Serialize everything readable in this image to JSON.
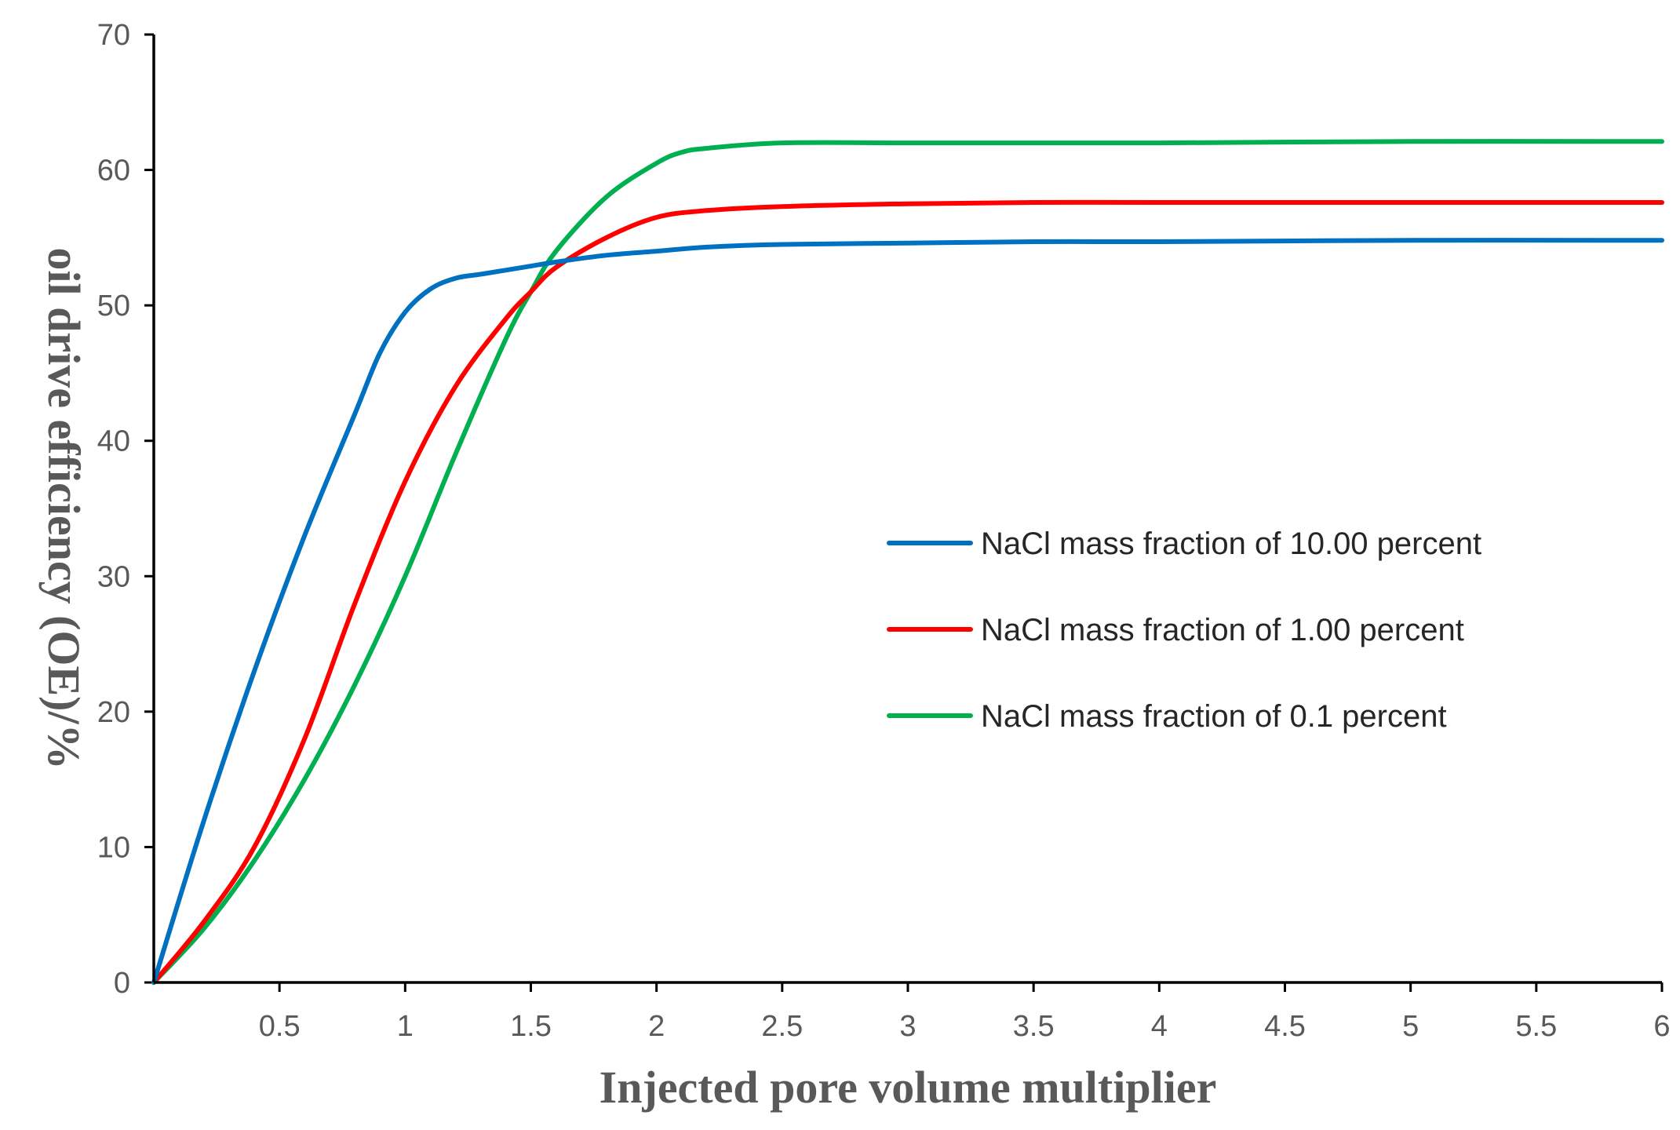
{
  "chart_data": {
    "type": "line",
    "title": "",
    "xlabel": "Injected pore volume multiplier",
    "ylabel": "oil drive efficiency (OE)/%",
    "xlim": [
      0,
      6
    ],
    "ylim": [
      0,
      70
    ],
    "xticks": [
      0.5,
      1,
      1.5,
      2,
      2.5,
      3,
      3.5,
      4,
      4.5,
      5,
      5.5,
      6
    ],
    "xtick_labels": [
      "0.5",
      "1",
      "1.5",
      "2",
      "2.5",
      "3",
      "3.5",
      "4",
      "4.5",
      "5",
      "5.5",
      "6"
    ],
    "yticks": [
      0,
      10,
      20,
      30,
      40,
      50,
      60,
      70
    ],
    "ytick_labels": [
      "0",
      "10",
      "20",
      "30",
      "40",
      "50",
      "60",
      "70"
    ],
    "grid": false,
    "legend_position": "center-right",
    "series": [
      {
        "name": "NaCl mass fraction of 10.00 percent",
        "color": "#0070C0",
        "x": [
          0,
          0.2,
          0.4,
          0.6,
          0.8,
          0.9,
          1.0,
          1.1,
          1.2,
          1.3,
          1.4,
          1.5,
          1.6,
          1.8,
          2.0,
          2.2,
          2.5,
          3.0,
          3.5,
          4.0,
          5.0,
          6.0
        ],
        "y": [
          0,
          12,
          23,
          33,
          42,
          46.5,
          49.5,
          51.2,
          52,
          52.3,
          52.6,
          52.9,
          53.2,
          53.7,
          54.0,
          54.3,
          54.5,
          54.6,
          54.7,
          54.7,
          54.8,
          54.8
        ]
      },
      {
        "name": "NaCl mass fraction of 1.00 percent",
        "color": "#FF0000",
        "x": [
          0,
          0.2,
          0.4,
          0.6,
          0.8,
          1.0,
          1.2,
          1.4,
          1.5,
          1.6,
          1.8,
          2.0,
          2.2,
          2.5,
          3.0,
          3.5,
          4.0,
          5.0,
          6.0
        ],
        "y": [
          0,
          4.5,
          10,
          18,
          28,
          37,
          44,
          49,
          51,
          52.8,
          55,
          56.5,
          57,
          57.3,
          57.5,
          57.6,
          57.6,
          57.6,
          57.6
        ]
      },
      {
        "name": "NaCl mass fraction of 0.1 percent",
        "color": "#00B050",
        "x": [
          0,
          0.2,
          0.4,
          0.6,
          0.8,
          1.0,
          1.2,
          1.4,
          1.5,
          1.6,
          1.8,
          2.0,
          2.1,
          2.2,
          2.5,
          3.0,
          3.5,
          4.0,
          5.0,
          6.0
        ],
        "y": [
          0,
          4,
          9,
          15,
          22,
          30,
          39,
          47.5,
          51,
          54,
          58,
          60.5,
          61.3,
          61.6,
          62,
          62,
          62,
          62,
          62.1,
          62.1
        ]
      }
    ]
  }
}
